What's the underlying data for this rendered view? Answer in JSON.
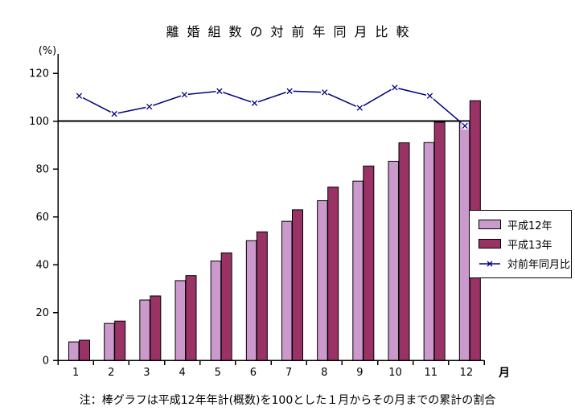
{
  "window": {
    "background_color": "#FFFFFF"
  },
  "chart_data": {
    "type": "combo",
    "title": "離婚組数の対前年同月比較",
    "categories": [
      "1",
      "2",
      "3",
      "4",
      "5",
      "6",
      "7",
      "8",
      "9",
      "10",
      "11",
      "12"
    ],
    "series": [
      {
        "name": "平成12年",
        "type": "bar",
        "color": "#CC99CC",
        "values": [
          7.7,
          15.4,
          25.2,
          33.3,
          41.5,
          50.0,
          58.1,
          66.7,
          74.9,
          83.2,
          91.0,
          100.0
        ]
      },
      {
        "name": "平成13年",
        "type": "bar",
        "color": "#993366",
        "values": [
          8.4,
          16.4,
          26.9,
          35.4,
          44.9,
          53.7,
          62.9,
          72.4,
          81.2,
          90.9,
          99.5,
          108.5
        ]
      },
      {
        "name": "対前年同月比",
        "type": "line",
        "color": "#000080",
        "marker": "x",
        "values": [
          110.5,
          103.0,
          106.0,
          111.0,
          112.5,
          107.5,
          112.5,
          112.0,
          105.5,
          114.0,
          110.5,
          98.0
        ]
      }
    ],
    "xlabel": "月",
    "ylabel": "(%)",
    "ylim": [
      0,
      120
    ],
    "yticks": [
      0,
      20,
      40,
      60,
      80,
      100,
      120
    ],
    "reference_line": 100,
    "grid": false,
    "legend_position": "right-middle-box",
    "axis_color": "#000000",
    "note": "注：棒グラフは平成12年年計(概数)を100とした１月からその月までの累計の割合"
  }
}
